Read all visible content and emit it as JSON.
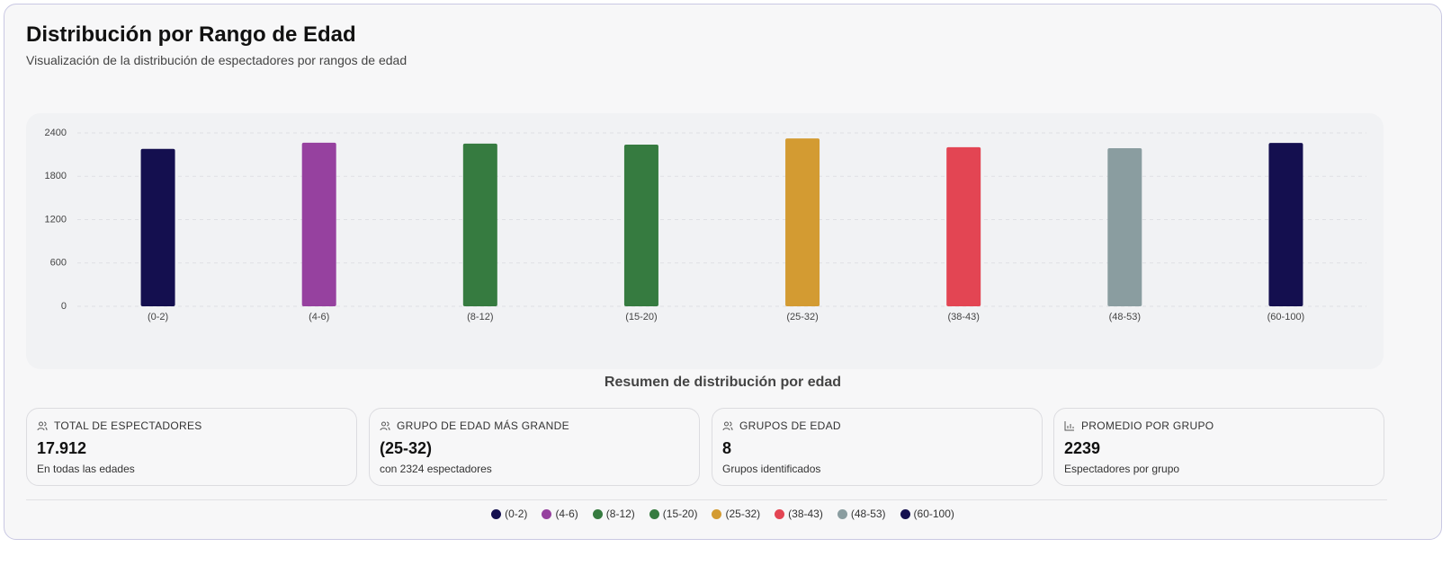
{
  "chart_data": {
    "type": "bar",
    "title": "Distribución por Rango de Edad",
    "subtitle": "Visualización de la distribución de espectadores por rangos de edad",
    "categories": [
      "(0-2)",
      "(4-6)",
      "(8-12)",
      "(15-20)",
      "(25-32)",
      "(38-43)",
      "(48-53)",
      "(60-100)"
    ],
    "values": [
      2180,
      2265,
      2252,
      2238,
      2324,
      2202,
      2189,
      2262
    ],
    "colors": [
      "#140f4f",
      "#96419f",
      "#367b40",
      "#367b40",
      "#d39b32",
      "#e34553",
      "#8a9da0",
      "#140f4f"
    ],
    "ylim": [
      0,
      2400
    ],
    "yticks": [
      0,
      600,
      1200,
      1800,
      2400
    ],
    "grid": true,
    "legend": "bottom"
  },
  "summary": {
    "title": "Resumen de distribución por edad",
    "cards": [
      {
        "label": "TOTAL DE ESPECTADORES",
        "value": "17.912",
        "note": "En todas las edades"
      },
      {
        "label": "GRUPO DE EDAD MÁS GRANDE",
        "value": "(25-32)",
        "note": "con 2324 espectadores"
      },
      {
        "label": "GRUPOS DE EDAD",
        "value": "8",
        "note": "Grupos identificados"
      },
      {
        "label": "PROMEDIO POR GRUPO",
        "value": "2239",
        "note": "Espectadores por grupo"
      }
    ]
  }
}
